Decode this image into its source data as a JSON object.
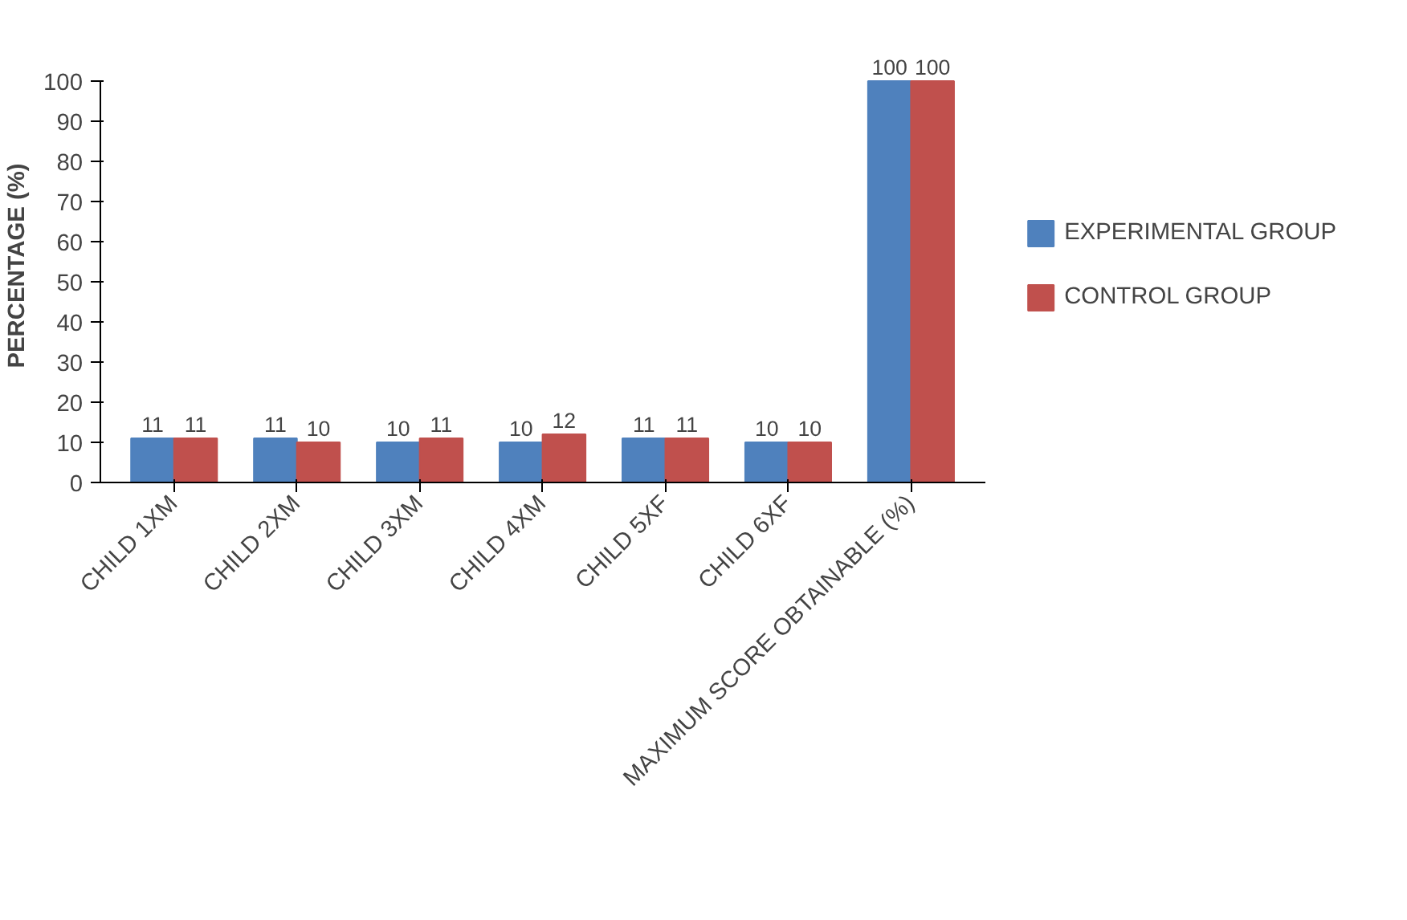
{
  "chart_data": {
    "type": "bar",
    "ylabel": "PERCENTAGE (%)",
    "categories": [
      "CHILD 1XM",
      "CHILD 2XM",
      "CHILD 3XM",
      "CHILD 4XM",
      "CHILD 5XF",
      "CHILD 6XF",
      "MAXIMUM SCORE OBTAINABLE (%)"
    ],
    "series": [
      {
        "name": "EXPERIMENTAL GROUP",
        "color": "#4f81bd",
        "values": [
          11,
          11,
          10,
          10,
          11,
          10,
          100
        ]
      },
      {
        "name": "CONTROL GROUP",
        "color": "#c0504d",
        "values": [
          11,
          10,
          11,
          12,
          11,
          10,
          100
        ]
      }
    ],
    "ylim": [
      0,
      100
    ],
    "yticks": [
      0,
      10,
      20,
      30,
      40,
      50,
      60,
      70,
      80,
      90,
      100
    ],
    "grid": false,
    "legend": "right",
    "data_labels": true
  }
}
